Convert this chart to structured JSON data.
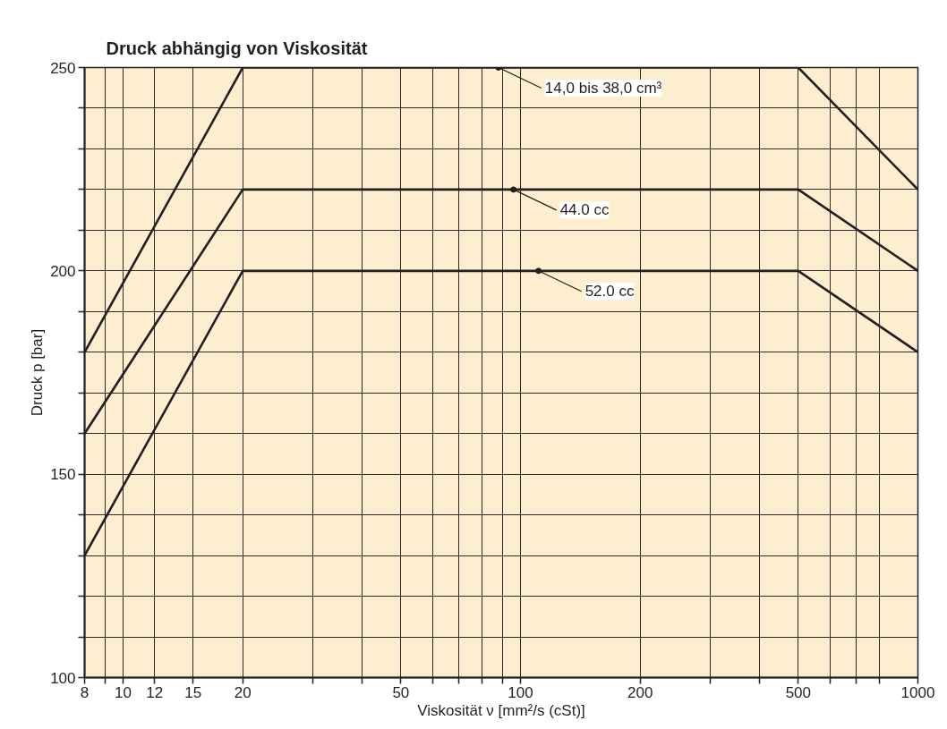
{
  "chart_data": {
    "type": "line",
    "title": "Druck abhängig von Viskosität",
    "xlabel": "Viskosität ν [mm²/s (cSt)]",
    "ylabel": "Druck p [bar]",
    "x": [
      8,
      20,
      500,
      1000
    ],
    "series": [
      {
        "color": "#231f20",
        "values": [
          180,
          250,
          250,
          220
        ]
      },
      {
        "color": "#231f20",
        "values": [
          160,
          220,
          220,
          200
        ]
      },
      {
        "color": "#231f20",
        "values": [
          130,
          200,
          200,
          180
        ]
      }
    ],
    "log": "x",
    "xlim": [
      8,
      1000
    ],
    "ylim": [
      100,
      250
    ],
    "xticks": [
      8,
      {
        "value": 9,
        "label": null
      },
      10,
      12,
      15,
      20,
      {
        "value": 30,
        "label": null
      },
      {
        "value": 40,
        "label": null
      },
      50,
      {
        "value": 60,
        "label": null
      },
      {
        "value": 70,
        "label": null
      },
      {
        "value": 80,
        "label": null
      },
      {
        "value": 90,
        "label": null
      },
      100,
      200,
      {
        "value": 300,
        "label": null
      },
      {
        "value": 400,
        "label": null
      },
      500,
      {
        "value": 600,
        "label": null
      },
      {
        "value": 700,
        "label": null
      },
      {
        "value": 800,
        "label": null
      },
      1000
    ],
    "yticks": [
      100,
      {
        "value": 110,
        "label": null
      },
      {
        "value": 120,
        "label": null
      },
      {
        "value": 130,
        "label": null
      },
      {
        "value": 140,
        "label": null
      },
      150,
      {
        "value": 160,
        "label": null
      },
      {
        "value": 170,
        "label": null
      },
      {
        "value": 180,
        "label": null
      },
      {
        "value": 190,
        "label": null
      },
      200,
      {
        "value": 210,
        "label": null
      },
      {
        "value": 220,
        "label": null
      },
      {
        "value": 230,
        "label": null
      },
      {
        "value": 240,
        "label": null
      },
      250
    ],
    "grid": true,
    "marker": "none",
    "line_style": "solid",
    "annotations": [
      {
        "text": "14,0 bis 38,0 cm³",
        "x": 88,
        "y": 250
      },
      {
        "text": "44.0 cc",
        "x": 96,
        "y": 220
      },
      {
        "text": "52.0 cc",
        "x": 111,
        "y": 200
      }
    ]
  }
}
